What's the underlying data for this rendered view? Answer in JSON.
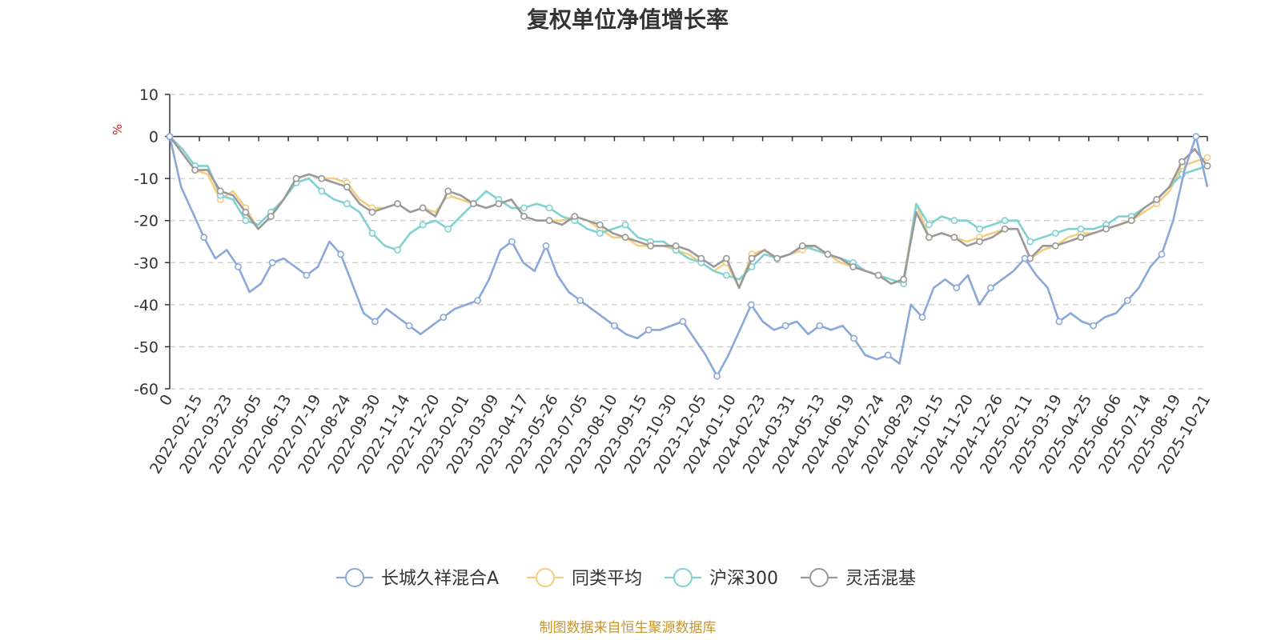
{
  "chart_data": {
    "type": "line",
    "title": "复权单位净值增长率",
    "ylabel": "%",
    "ylim": [
      -60,
      10
    ],
    "yticks": [
      10,
      0,
      -10,
      -20,
      -30,
      -40,
      -50,
      -60
    ],
    "x_ticks": [
      "0",
      "2022-02-15",
      "2022-03-23",
      "2022-05-05",
      "2022-06-13",
      "2022-07-19",
      "2022-08-24",
      "2022-09-30",
      "2022-11-14",
      "2022-12-20",
      "2023-02-01",
      "2023-03-09",
      "2023-04-17",
      "2023-05-26",
      "2023-07-05",
      "2023-08-10",
      "2023-09-15",
      "2023-10-30",
      "2023-12-05",
      "2024-01-10",
      "2024-02-23",
      "2024-03-31",
      "2024-05-13",
      "2024-06-19",
      "2024-07-24",
      "2024-08-29",
      "2024-10-15",
      "2024-11-20",
      "2024-12-26",
      "2025-02-11",
      "2025-03-19",
      "2025-04-25",
      "2025-06-06",
      "2025-07-14",
      "2025-08-19",
      "2025-10-21"
    ],
    "grid": true,
    "legend_position": "bottom",
    "series": [
      {
        "name": "长城久祥混合A",
        "color": "#8aa8d8",
        "values": [
          0,
          -12,
          -18,
          -24,
          -29,
          -27,
          -31,
          -37,
          -35,
          -30,
          -29,
          -31,
          -33,
          -31,
          -25,
          -28,
          -35,
          -42,
          -44,
          -41,
          -43,
          -45,
          -47,
          -45,
          -43,
          -41,
          -40,
          -39,
          -34,
          -27,
          -25,
          -30,
          -32,
          -26,
          -33,
          -37,
          -39,
          -41,
          -43,
          -45,
          -47,
          -48,
          -46,
          -46,
          -45,
          -44,
          -48,
          -52,
          -57,
          -52,
          -46,
          -40,
          -44,
          -46,
          -45,
          -44,
          -47,
          -45,
          -46,
          -45,
          -48,
          -52,
          -53,
          -52,
          -54,
          -40,
          -43,
          -36,
          -34,
          -36,
          -33,
          -40,
          -36,
          -34,
          -32,
          -29,
          -33,
          -36,
          -44,
          -42,
          -44,
          -45,
          -43,
          -42,
          -39,
          -36,
          -31,
          -28,
          -20,
          -8,
          0,
          -12
        ]
      },
      {
        "name": "同类平均",
        "color": "#f5cd7e",
        "values": [
          0,
          -4,
          -8,
          -9,
          -15,
          -13,
          -17,
          -22,
          -19,
          -15,
          -10,
          -9,
          -10,
          -10,
          -11,
          -15,
          -17,
          -17,
          -16,
          -18,
          -17,
          -18,
          -14,
          -15,
          -16,
          -17,
          -16,
          -15,
          -19,
          -20,
          -20,
          -20,
          -19,
          -20,
          -22,
          -24,
          -24,
          -26,
          -26,
          -26,
          -27,
          -28,
          -30,
          -32,
          -30,
          -36,
          -28,
          -27,
          -29,
          -28,
          -27,
          -26,
          -28,
          -30,
          -31,
          -32,
          -33,
          -35,
          -34,
          -16,
          -24,
          -23,
          -24,
          -25,
          -24,
          -23,
          -22,
          -22,
          -29,
          -27,
          -26,
          -24,
          -23,
          -23,
          -22,
          -21,
          -20,
          -18,
          -16,
          -13,
          -7,
          -6,
          -5
        ]
      },
      {
        "name": "沪深300",
        "color": "#7fd1d2",
        "values": [
          0,
          -3,
          -7,
          -7,
          -14,
          -15,
          -20,
          -21,
          -18,
          -15,
          -11,
          -10,
          -13,
          -15,
          -16,
          -18,
          -23,
          -26,
          -27,
          -23,
          -21,
          -20,
          -22,
          -19,
          -16,
          -13,
          -15,
          -17,
          -17,
          -16,
          -17,
          -19,
          -20,
          -22,
          -23,
          -22,
          -21,
          -24,
          -25,
          -25,
          -27,
          -29,
          -30,
          -32,
          -33,
          -34,
          -31,
          -28,
          -29,
          -28,
          -26,
          -27,
          -28,
          -29,
          -30,
          -32,
          -33,
          -34,
          -35,
          -16,
          -21,
          -19,
          -20,
          -20,
          -22,
          -21,
          -20,
          -20,
          -25,
          -24,
          -23,
          -22,
          -22,
          -22,
          -21,
          -19,
          -19,
          -17,
          -15,
          -12,
          -9,
          -8,
          -7
        ]
      },
      {
        "name": "灵活混基",
        "color": "#999999",
        "values": [
          0,
          -4,
          -8,
          -8,
          -13,
          -14,
          -18,
          -22,
          -19,
          -15,
          -10,
          -9,
          -10,
          -11,
          -12,
          -16,
          -18,
          -17,
          -16,
          -18,
          -17,
          -19,
          -13,
          -14,
          -16,
          -17,
          -16,
          -15,
          -19,
          -20,
          -20,
          -21,
          -19,
          -20,
          -21,
          -23,
          -24,
          -25,
          -26,
          -26,
          -26,
          -27,
          -29,
          -31,
          -29,
          -36,
          -29,
          -27,
          -29,
          -28,
          -26,
          -26,
          -28,
          -29,
          -31,
          -32,
          -33,
          -35,
          -34,
          -18,
          -24,
          -23,
          -24,
          -26,
          -25,
          -24,
          -22,
          -22,
          -29,
          -26,
          -26,
          -25,
          -24,
          -23,
          -22,
          -21,
          -20,
          -17,
          -15,
          -12,
          -6,
          -3,
          -7
        ]
      }
    ]
  },
  "footer": "制图数据来自恒生聚源数据库"
}
